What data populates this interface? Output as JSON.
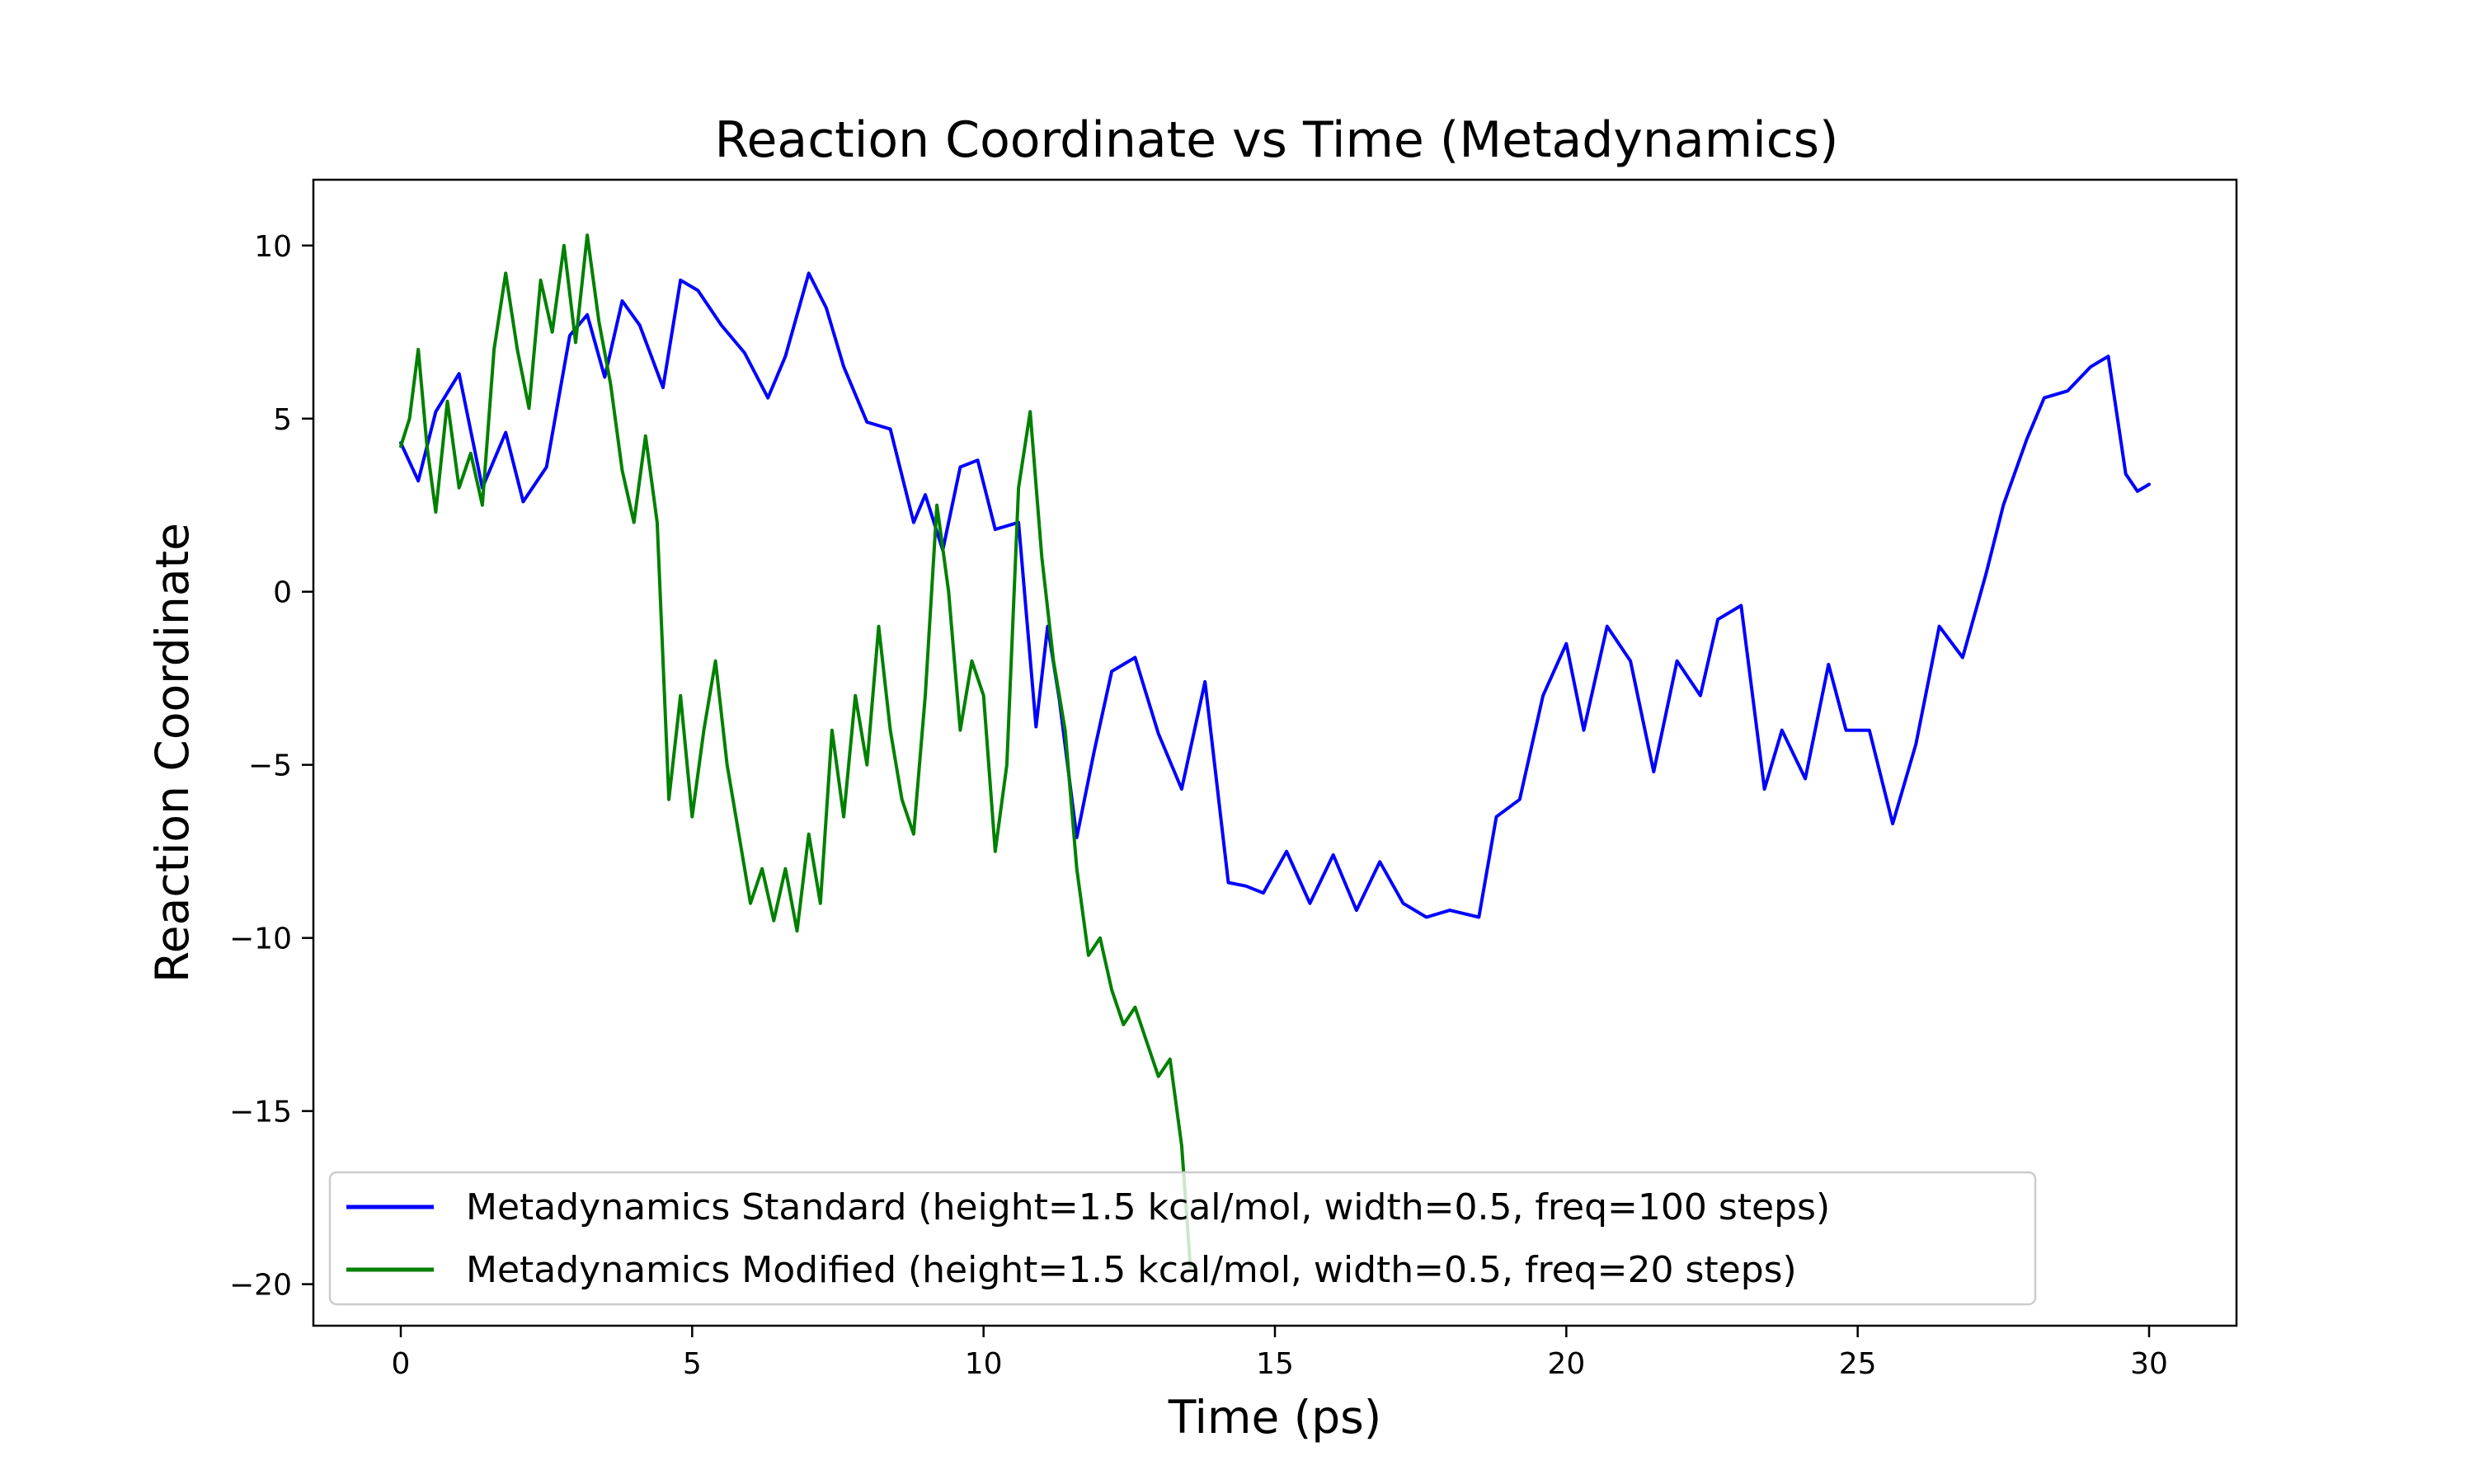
{
  "chart_data": {
    "type": "line",
    "title": "Reaction Coordinate vs Time (Metadynamics)",
    "xlabel": "Time (ps)",
    "ylabel": "Reaction Coordinate",
    "xlim": [
      -1.5,
      31.5
    ],
    "ylim": [
      -21.2,
      11.9
    ],
    "xticks": [
      0,
      5,
      10,
      15,
      20,
      25,
      30
    ],
    "xtick_labels": [
      "0",
      "5",
      "10",
      "15",
      "20",
      "25",
      "30"
    ],
    "yticks": [
      10,
      5,
      0,
      -5,
      -10,
      -15,
      -20
    ],
    "ytick_labels": [
      "10",
      "5",
      "0",
      "−5",
      "−10",
      "−15",
      "−20"
    ],
    "grid": false,
    "legend_position": "lower-left",
    "series": [
      {
        "name": "Metadynamics Standard (height=1.5 kcal/mol, width=0.5, freq=100 steps)",
        "color": "#0000ff",
        "x": [
          0,
          0.3,
          0.6,
          1,
          1.4,
          1.8,
          2.1,
          2.5,
          2.9,
          3.2,
          3.5,
          3.8,
          4.1,
          4.5,
          4.8,
          5.1,
          5.5,
          5.9,
          6.3,
          6.6,
          7,
          7.3,
          7.6,
          8,
          8.4,
          8.8,
          9,
          9.3,
          9.6,
          9.9,
          10.2,
          10.6,
          10.9,
          11.1,
          11.3,
          11.6,
          11.9,
          12.2,
          12.6,
          13,
          13.4,
          13.8,
          14.2,
          14.5,
          14.8,
          15.2,
          15.6,
          16,
          16.4,
          16.8,
          17.2,
          17.6,
          18,
          18.5,
          18.8,
          19.2,
          19.6,
          20,
          20.3,
          20.7,
          21.1,
          21.5,
          21.9,
          22.3,
          22.6,
          23,
          23.4,
          23.7,
          24.1,
          24.5,
          24.8,
          25.2,
          25.6,
          26,
          26.4,
          26.8,
          27.2,
          27.5,
          27.9,
          28.2,
          28.6,
          29,
          29.3,
          29.6,
          29.8,
          30
        ],
        "y": [
          4.3,
          3.2,
          5.2,
          6.3,
          3.0,
          4.6,
          2.6,
          3.6,
          7.4,
          8.0,
          6.2,
          8.4,
          7.7,
          5.9,
          9.0,
          8.7,
          7.7,
          6.9,
          5.6,
          6.8,
          9.2,
          8.2,
          6.5,
          4.9,
          4.7,
          2.0,
          2.8,
          1.2,
          3.6,
          3.8,
          1.8,
          2.0,
          -3.9,
          -1.0,
          -3.1,
          -7.1,
          -4.6,
          -2.3,
          -1.9,
          -4.1,
          -5.7,
          -2.6,
          -8.4,
          -8.5,
          -8.7,
          -7.5,
          -9.0,
          -7.6,
          -9.2,
          -7.8,
          -9.0,
          -9.4,
          -9.2,
          -9.4,
          -6.5,
          -6.0,
          -3.0,
          -1.5,
          -4.0,
          -1.0,
          -2.0,
          -5.2,
          -2.0,
          -3.0,
          -0.8,
          -0.4,
          -5.7,
          -4.0,
          -5.4,
          -2.1,
          -4.0,
          -4.0,
          -6.7,
          -4.4,
          -1.0,
          -1.9,
          0.5,
          2.5,
          4.4,
          5.6,
          5.8,
          6.5,
          6.8,
          3.4,
          2.9,
          3.1
        ]
      },
      {
        "name": "Metadynamics Modified (height=1.5 kcal/mol, width=0.5, freq=20 steps)",
        "color": "#008000",
        "x": [
          0,
          0.15,
          0.3,
          0.45,
          0.6,
          0.8,
          1,
          1.2,
          1.4,
          1.6,
          1.8,
          2,
          2.2,
          2.4,
          2.6,
          2.8,
          3,
          3.2,
          3.4,
          3.6,
          3.8,
          4,
          4.2,
          4.4,
          4.6,
          4.8,
          5,
          5.2,
          5.4,
          5.6,
          5.8,
          6,
          6.2,
          6.4,
          6.6,
          6.8,
          7,
          7.2,
          7.4,
          7.6,
          7.8,
          8,
          8.2,
          8.4,
          8.6,
          8.8,
          9,
          9.2,
          9.4,
          9.6,
          9.8,
          10,
          10.2,
          10.4,
          10.6,
          10.8,
          11,
          11.2,
          11.4,
          11.6,
          11.8,
          12,
          12.2,
          12.4,
          12.6,
          12.8,
          13,
          13.2,
          13.4,
          13.55
        ],
        "y": [
          4.2,
          5.0,
          7.0,
          4.2,
          2.3,
          5.5,
          3.0,
          4.0,
          2.5,
          7.0,
          9.2,
          7.0,
          5.3,
          9.0,
          7.5,
          10.0,
          7.2,
          10.3,
          7.8,
          6.0,
          3.5,
          2.0,
          4.5,
          2.0,
          -6.0,
          -3.0,
          -6.5,
          -4.0,
          -2.0,
          -5.0,
          -7.0,
          -9.0,
          -8.0,
          -9.5,
          -8.0,
          -9.8,
          -7.0,
          -9.0,
          -4.0,
          -6.5,
          -3.0,
          -5.0,
          -1.0,
          -4.0,
          -6.0,
          -7.0,
          -3.0,
          2.5,
          0.0,
          -4.0,
          -2.0,
          -3.0,
          -7.5,
          -5.0,
          3.0,
          5.2,
          1.0,
          -2.0,
          -4.0,
          -8.0,
          -10.5,
          -10.0,
          -11.5,
          -12.5,
          -12.0,
          -13.0,
          -14.0,
          -13.5,
          -16.0,
          -19.5
        ]
      }
    ]
  }
}
